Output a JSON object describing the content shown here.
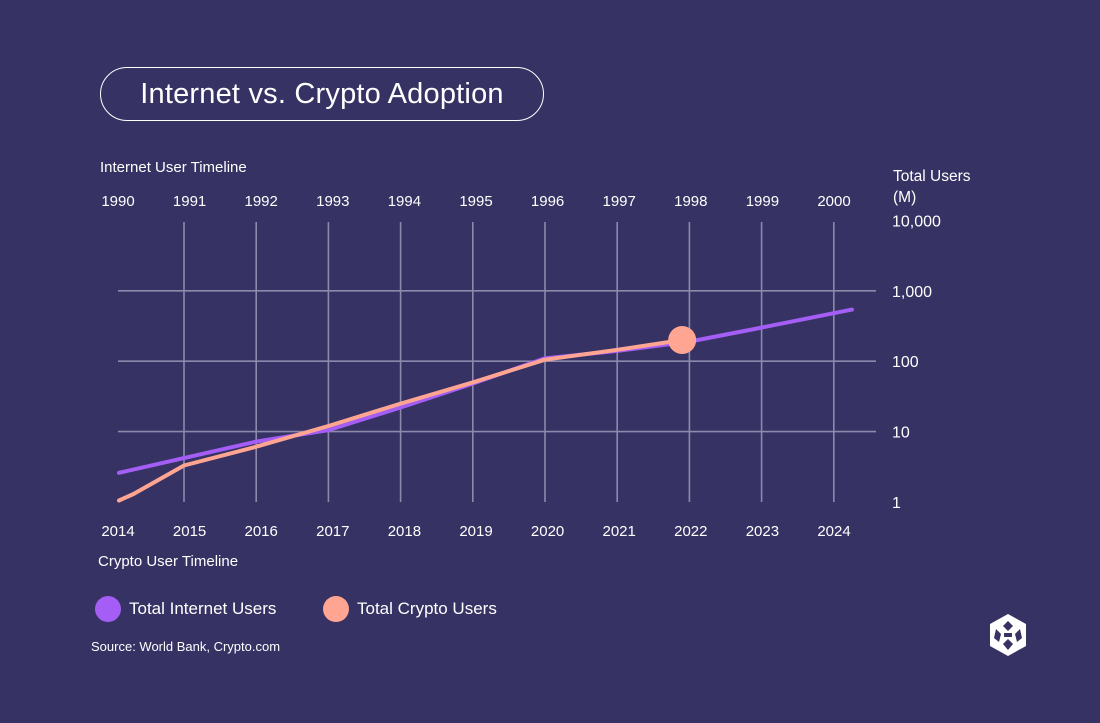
{
  "title": "Internet vs. Crypto Adoption",
  "chart_data": {
    "type": "line",
    "title": "Internet vs. Crypto Adoption",
    "top_axis": {
      "label": "Internet User Timeline",
      "ticks": [
        "1990",
        "1991",
        "1992",
        "1993",
        "1994",
        "1995",
        "1996",
        "1997",
        "1998",
        "1999",
        "2000"
      ]
    },
    "bottom_axis": {
      "label": "Crypto User Timeline",
      "ticks": [
        "2014",
        "2015",
        "2016",
        "2017",
        "2018",
        "2019",
        "2020",
        "2021",
        "2022",
        "2023",
        "2024"
      ]
    },
    "y_axis": {
      "label_line1": "Total Users",
      "label_line2": "(M)",
      "scale": "log",
      "ylim": [
        1,
        10000
      ],
      "ticks": [
        {
          "value": 1,
          "label": "1"
        },
        {
          "value": 10,
          "label": "10"
        },
        {
          "value": 100,
          "label": "100"
        },
        {
          "value": 1000,
          "label": "1,000"
        },
        {
          "value": 10000,
          "label": "10,000"
        }
      ]
    },
    "series": [
      {
        "name": "Total Internet Users",
        "color": "#A45EF5",
        "x_index": [
          -0.9,
          0,
          1,
          2,
          3,
          4,
          5,
          5.2,
          6,
          7,
          8,
          9.25
        ],
        "values": [
          2.6,
          4.2,
          7.2,
          10.5,
          22,
          48,
          110,
          115,
          140,
          190,
          300,
          540
        ]
      },
      {
        "name": "Total Crypto Users",
        "color": "#FFA592",
        "x_index": [
          -0.9,
          -0.7,
          0,
          1,
          2,
          3,
          4,
          5,
          6,
          6.9
        ],
        "values": [
          1.05,
          1.3,
          3.3,
          6.1,
          12,
          25,
          50,
          105,
          145,
          200
        ],
        "highlight_last_point": true
      }
    ]
  },
  "legend": {
    "internet_label": "Total Internet Users",
    "crypto_label": "Total Crypto Users"
  },
  "source": "Source: World Bank, Crypto.com",
  "colors": {
    "background": "#363263",
    "grid": "#8C89AD",
    "internet": "#A45EF5",
    "crypto": "#FFA592",
    "text": "#FFFFFF"
  },
  "icons": {
    "brand_logo": "crypto-com-logo-icon"
  }
}
